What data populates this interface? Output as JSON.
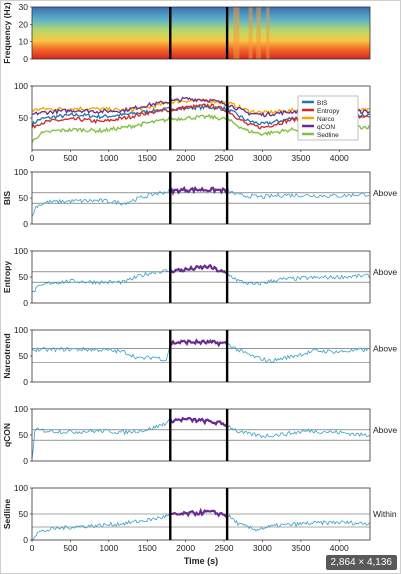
{
  "colors": {
    "bis": "#1f77b4",
    "entropy": "#d62728",
    "narco": "#f2a900",
    "qcon": "#6a2c91",
    "sedline": "#7fbf3f",
    "signal": "#3aa0c8",
    "highlight": "#6a2c91",
    "epoch_line": "#000000"
  },
  "image_size_label": "2,864 × 4,136",
  "chart_data": [
    {
      "type": "heatmap",
      "ylabel": "Frequency (Hz)",
      "ylim": [
        0,
        30
      ],
      "yticks": [
        0,
        10,
        20,
        30
      ],
      "xlim": [
        0,
        4400
      ],
      "epoch_bounds": [
        1800,
        2540
      ]
    },
    {
      "type": "line",
      "ylim": [
        0,
        100
      ],
      "yticks": [
        50,
        100
      ],
      "xlim": [
        0,
        4400
      ],
      "xticks": [
        0,
        500,
        1000,
        1500,
        2000,
        2500,
        3000,
        3500,
        4000
      ],
      "legend_placement": "right",
      "epoch_bounds": [
        1800,
        2540
      ],
      "series": [
        {
          "name": "BIS",
          "color_key": "bis",
          "x": [
            0,
            100,
            300,
            600,
            900,
            1200,
            1500,
            1800,
            2000,
            2300,
            2540,
            2800,
            3000,
            3400,
            3800,
            4300
          ],
          "values": [
            40,
            48,
            52,
            55,
            52,
            55,
            60,
            64,
            66,
            67,
            64,
            46,
            40,
            50,
            52,
            55
          ]
        },
        {
          "name": "Entropy",
          "color_key": "entropy",
          "x": [
            0,
            100,
            300,
            600,
            900,
            1200,
            1500,
            1800,
            2000,
            2300,
            2540,
            2800,
            3000,
            3400,
            3800,
            4300
          ],
          "values": [
            35,
            42,
            46,
            48,
            44,
            50,
            58,
            63,
            66,
            70,
            62,
            40,
            35,
            48,
            50,
            52
          ]
        },
        {
          "name": "Narco",
          "color_key": "narco",
          "x": [
            0,
            100,
            300,
            600,
            900,
            1200,
            1500,
            1800,
            2000,
            2300,
            2540,
            2800,
            3000,
            3400,
            3800,
            4300
          ],
          "values": [
            62,
            64,
            64,
            65,
            64,
            62,
            66,
            75,
            77,
            77,
            74,
            62,
            58,
            62,
            63,
            62
          ]
        },
        {
          "name": "qCON",
          "color_key": "qcon",
          "x": [
            0,
            100,
            300,
            600,
            900,
            1200,
            1500,
            1800,
            2000,
            2300,
            2540,
            2800,
            3000,
            3400,
            3800,
            4300
          ],
          "values": [
            55,
            58,
            60,
            62,
            60,
            62,
            70,
            76,
            80,
            78,
            72,
            58,
            55,
            60,
            62,
            60
          ]
        },
        {
          "name": "Sedline",
          "color_key": "sedline",
          "x": [
            0,
            100,
            300,
            600,
            900,
            1200,
            1500,
            1800,
            2000,
            2300,
            2540,
            2800,
            3000,
            3400,
            3800,
            4300
          ],
          "values": [
            12,
            25,
            30,
            32,
            30,
            35,
            42,
            48,
            50,
            52,
            48,
            30,
            25,
            32,
            35,
            36
          ]
        }
      ]
    },
    {
      "type": "line",
      "ylabel": "BIS",
      "annotation": "Above",
      "ylim": [
        0,
        100
      ],
      "yticks": [
        0,
        50,
        100
      ],
      "xlim": [
        0,
        4400
      ],
      "epoch_bounds": [
        1800,
        2540
      ],
      "thresholds": [
        40,
        60
      ],
      "series": [
        {
          "color_key": "signal",
          "x": [
            0,
            60,
            200,
            500,
            900,
            1200,
            1400,
            1600,
            1800,
            2000,
            2300,
            2540,
            2700,
            3000,
            3300,
            3600,
            4000,
            4300
          ],
          "values": [
            15,
            35,
            42,
            44,
            45,
            40,
            50,
            58,
            63,
            66,
            66,
            64,
            55,
            52,
            56,
            55,
            54,
            57
          ]
        }
      ]
    },
    {
      "type": "line",
      "ylabel": "Entropy",
      "annotation": "Above",
      "ylim": [
        0,
        100
      ],
      "yticks": [
        0,
        50,
        100
      ],
      "xlim": [
        0,
        4400
      ],
      "epoch_bounds": [
        1800,
        2540
      ],
      "thresholds": [
        40,
        60
      ],
      "series": [
        {
          "color_key": "signal",
          "x": [
            0,
            60,
            200,
            500,
            900,
            1200,
            1400,
            1600,
            1800,
            2000,
            2300,
            2540,
            2700,
            2900,
            3200,
            3600,
            4000,
            4300
          ],
          "values": [
            18,
            28,
            38,
            42,
            40,
            40,
            52,
            60,
            62,
            64,
            70,
            56,
            42,
            35,
            45,
            48,
            50,
            52
          ]
        }
      ]
    },
    {
      "type": "line",
      "ylabel": "Narcotrend",
      "annotation": "Above",
      "ylim": [
        0,
        100
      ],
      "yticks": [
        0,
        50,
        100
      ],
      "xlim": [
        0,
        4400
      ],
      "epoch_bounds": [
        1800,
        2540
      ],
      "thresholds": [
        37,
        64
      ],
      "series": [
        {
          "color_key": "signal",
          "x": [
            0,
            200,
            500,
            900,
            1200,
            1400,
            1600,
            1750,
            1800,
            2000,
            2300,
            2540,
            2700,
            2900,
            3100,
            3400,
            3700,
            4000,
            4300
          ],
          "values": [
            62,
            62,
            63,
            62,
            58,
            45,
            48,
            42,
            75,
            77,
            76,
            74,
            60,
            48,
            40,
            50,
            60,
            58,
            62
          ]
        }
      ]
    },
    {
      "type": "line",
      "ylabel": "qCON",
      "annotation": "Above",
      "ylim": [
        0,
        100
      ],
      "yticks": [
        0,
        50,
        100
      ],
      "xlim": [
        0,
        4400
      ],
      "epoch_bounds": [
        1800,
        2540
      ],
      "thresholds": [
        40,
        60
      ],
      "series": [
        {
          "color_key": "signal",
          "x": [
            0,
            40,
            200,
            500,
            900,
            1200,
            1500,
            1700,
            1800,
            2000,
            2300,
            2540,
            2700,
            3000,
            3300,
            3600,
            4000,
            4300
          ],
          "values": [
            5,
            60,
            58,
            56,
            58,
            55,
            60,
            70,
            78,
            80,
            76,
            70,
            55,
            48,
            52,
            58,
            55,
            50
          ]
        }
      ]
    },
    {
      "type": "line",
      "ylabel": "Sedline",
      "annotation": "Within",
      "ylim": [
        0,
        100
      ],
      "yticks": [
        0,
        50,
        100
      ],
      "xlim": [
        0,
        4400
      ],
      "epoch_bounds": [
        1800,
        2540
      ],
      "thresholds": [
        25,
        50
      ],
      "xlabel": "Time (s)",
      "xticks": [
        0,
        500,
        1000,
        1500,
        2000,
        2500,
        3000,
        3500,
        4000
      ],
      "series": [
        {
          "color_key": "signal",
          "x": [
            0,
            80,
            300,
            600,
            900,
            1200,
            1500,
            1700,
            1800,
            2000,
            2300,
            2540,
            2700,
            2900,
            3200,
            3600,
            4000,
            4300
          ],
          "values": [
            2,
            15,
            22,
            26,
            28,
            32,
            38,
            44,
            48,
            50,
            54,
            48,
            30,
            20,
            28,
            32,
            34,
            32
          ]
        }
      ]
    }
  ]
}
